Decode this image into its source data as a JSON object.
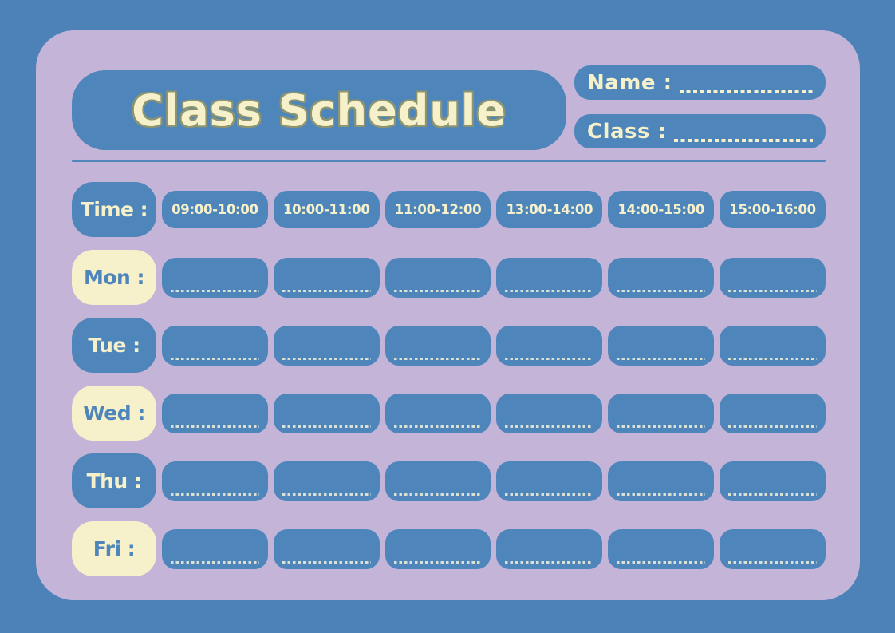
{
  "title": "Class Schedule",
  "fields": {
    "name": {
      "label": "Name :"
    },
    "class": {
      "label": "Class :"
    }
  },
  "schedule": {
    "time_header": "Time :",
    "time_slots": [
      "09:00-10:00",
      "10:00-11:00",
      "11:00-12:00",
      "13:00-14:00",
      "14:00-15:00",
      "15:00-16:00"
    ],
    "days": [
      {
        "key": "mon",
        "label": "Mon :",
        "variant": "cream"
      },
      {
        "key": "tue",
        "label": "Tue :",
        "variant": "blue"
      },
      {
        "key": "wed",
        "label": "Wed :",
        "variant": "cream"
      },
      {
        "key": "thu",
        "label": "Thu :",
        "variant": "blue"
      },
      {
        "key": "fri",
        "label": "Fri :",
        "variant": "cream"
      }
    ]
  },
  "colors": {
    "background_blue": "#4C82B8",
    "card_purple": "#C4B4D8",
    "box_blue": "#4E86BC",
    "cream_text": "#F6F1CA",
    "title_outline_olive": "#8D9470"
  }
}
